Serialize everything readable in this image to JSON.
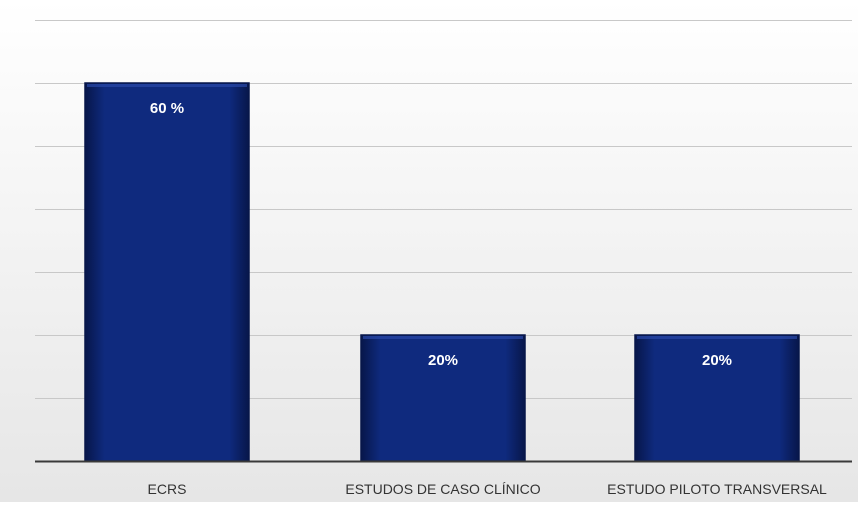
{
  "chart_data": {
    "type": "bar",
    "categories": [
      "ECRS",
      "ESTUDOS DE CASO CLÍNICO",
      "ESTUDO PILOTO TRANSVERSAL"
    ],
    "values": [
      60,
      20,
      20
    ],
    "data_labels": [
      "60 %",
      "20%",
      "20%"
    ],
    "ylim": [
      0,
      70
    ],
    "y_step": 10,
    "grid": true,
    "show_y_axis_labels": false,
    "bar_color": "#0d2470",
    "bar_edge_color": "#07164a",
    "label_color": "#ffffff",
    "gridline_color": "#c8c8c8",
    "baseline_color": "#3a3a3a",
    "category_label_color": "#333333"
  }
}
